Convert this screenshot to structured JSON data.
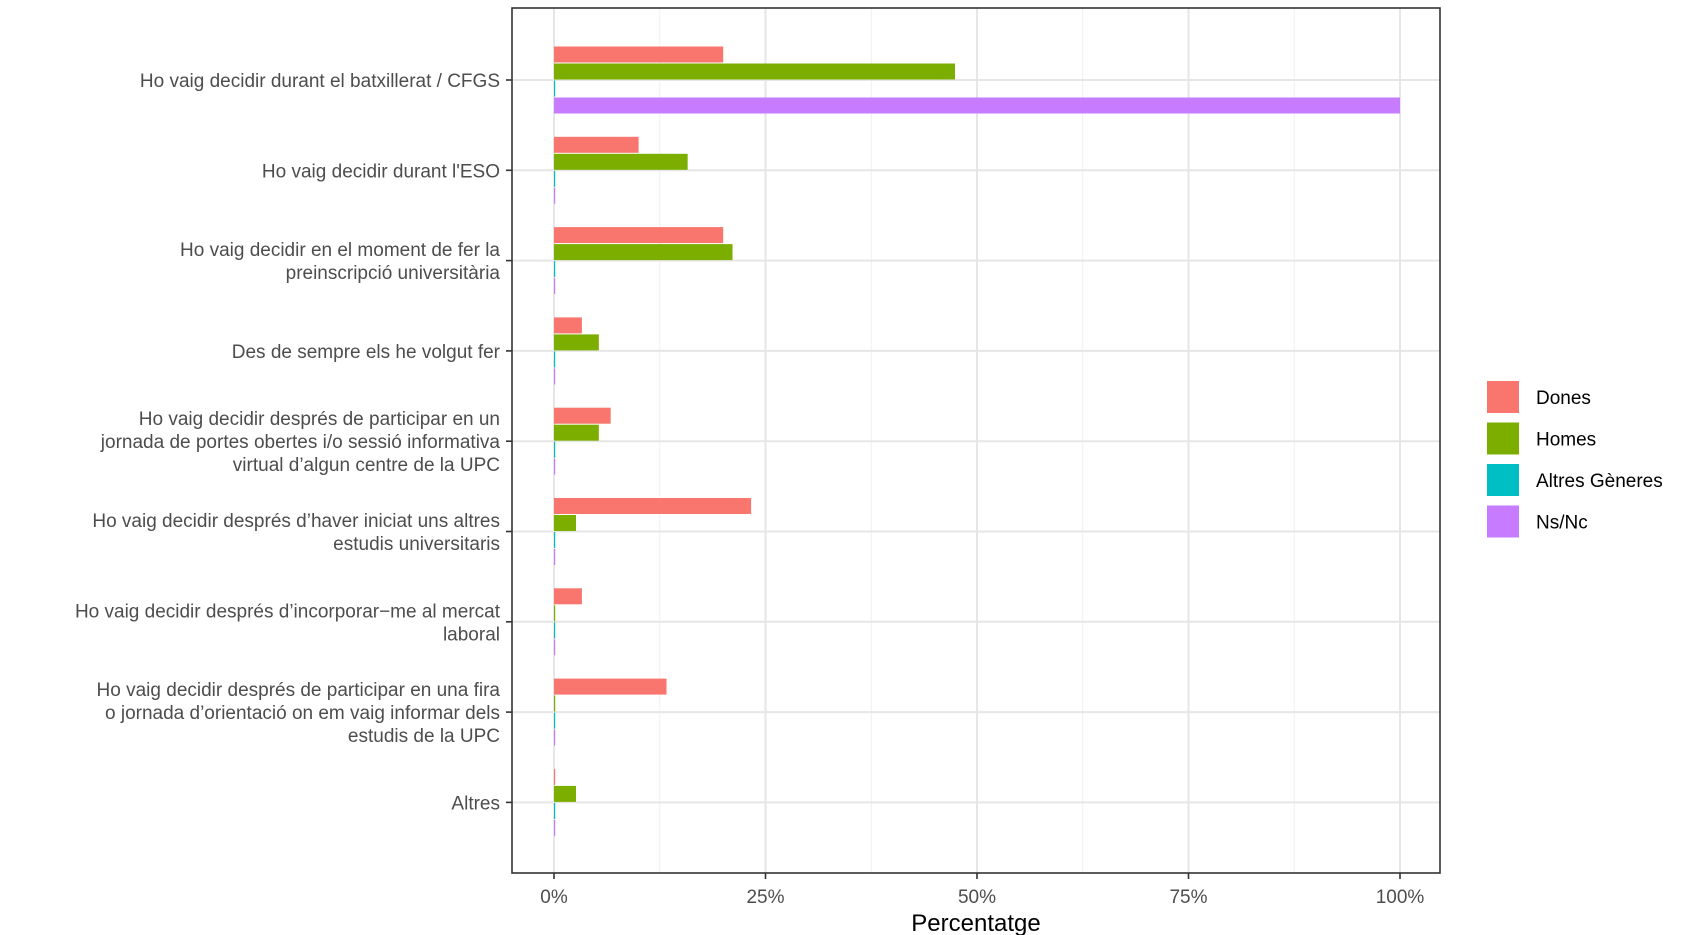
{
  "chart_data": {
    "type": "bar",
    "orientation": "horizontal",
    "categories": [
      [
        "Ho vaig decidir durant el batxillerat / CFGS"
      ],
      [
        "Ho vaig decidir durant l'ESO"
      ],
      [
        "Ho vaig decidir en el moment de fer la",
        "preinscripció universitària"
      ],
      [
        "Des de sempre els he volgut fer"
      ],
      [
        "Ho vaig decidir després de participar en un",
        "jornada de portes obertes i/o sessió informativa",
        "virtual d’algun centre de la UPC"
      ],
      [
        "Ho vaig decidir després d’haver iniciat uns altres",
        "estudis universitaris"
      ],
      [
        "Ho vaig decidir després d’incorporar−me al mercat",
        "laboral"
      ],
      [
        "Ho vaig decidir després de participar en una fira",
        "o jornada d’orientació on em vaig informar dels",
        "estudis de la UPC"
      ],
      [
        "Altres"
      ]
    ],
    "series": [
      {
        "name": "Dones",
        "color": "#F8766D",
        "values": [
          20.0,
          10.0,
          20.0,
          3.3,
          6.7,
          23.3,
          3.3,
          13.3,
          0.0
        ]
      },
      {
        "name": "Homes",
        "color": "#7CAE00",
        "values": [
          47.4,
          15.8,
          21.1,
          5.3,
          5.3,
          2.6,
          0.0,
          0.0,
          2.6
        ]
      },
      {
        "name": "Altres Gèneres",
        "color": "#00BFC4",
        "values": [
          0,
          0,
          0,
          0,
          0,
          0,
          0,
          0,
          0
        ]
      },
      {
        "name": "Ns/Nc",
        "color": "#C77CFF",
        "values": [
          100,
          0,
          0,
          0,
          0,
          0,
          0,
          0,
          0
        ]
      }
    ],
    "xlim": [
      0,
      100
    ],
    "x_ticks": [
      0,
      25,
      50,
      75,
      100
    ],
    "x_tick_labels": [
      "0%",
      "25%",
      "50%",
      "75%",
      "100%"
    ],
    "xlabel": "Percentatge",
    "ylabel": "",
    "title": "",
    "grid": true,
    "legend_position": "right"
  }
}
